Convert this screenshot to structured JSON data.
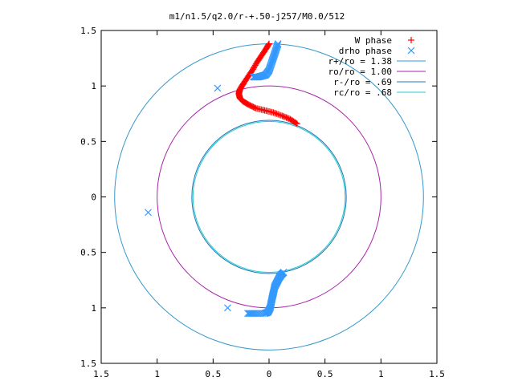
{
  "chart_data": {
    "type": "scatter",
    "title": "m1/n1.5/q2.0/r-+.50-j257/M0.0/512",
    "xlabel": "",
    "ylabel": "",
    "xlim": [
      -1.5,
      1.5
    ],
    "ylim": [
      -1.5,
      1.5
    ],
    "x_tick_values": [
      -1.5,
      -1,
      -0.5,
      0,
      0.5,
      1,
      1.5
    ],
    "x_tick_labels": [
      "1.5",
      "1",
      "0.5",
      "0",
      "0.5",
      "1",
      "1.5"
    ],
    "y_tick_values": [
      1.5,
      1,
      0.5,
      0,
      -0.5,
      -1,
      -1.5
    ],
    "y_tick_labels": [
      "1.5",
      "1",
      "0.5",
      "0",
      "0.5",
      "1",
      "1.5"
    ],
    "grid": false,
    "legend_position": "top-right",
    "series": [
      {
        "name": "W phase",
        "kind": "points",
        "marker": "+",
        "color": "#ff0000",
        "points": [
          [
            0.0,
            1.38
          ],
          [
            -0.03,
            1.33
          ],
          [
            -0.07,
            1.27
          ],
          [
            -0.11,
            1.21
          ],
          [
            -0.15,
            1.14
          ],
          [
            -0.19,
            1.08
          ],
          [
            -0.23,
            1.02
          ],
          [
            -0.26,
            0.97
          ],
          [
            -0.27,
            0.93
          ],
          [
            -0.26,
            0.89
          ],
          [
            -0.23,
            0.86
          ],
          [
            -0.18,
            0.83
          ],
          [
            -0.12,
            0.8
          ],
          [
            -0.04,
            0.78
          ],
          [
            0.04,
            0.76
          ],
          [
            0.12,
            0.73
          ],
          [
            0.19,
            0.7
          ],
          [
            0.25,
            0.66
          ]
        ]
      },
      {
        "name": "drho phase",
        "kind": "points",
        "marker": "x",
        "color": "#3399ff",
        "points": [
          [
            0.08,
            1.38
          ],
          [
            0.06,
            1.32
          ],
          [
            0.04,
            1.26
          ],
          [
            0.02,
            1.2
          ],
          [
            0.0,
            1.14
          ],
          [
            -0.03,
            1.1
          ],
          [
            -0.06,
            1.09
          ],
          [
            -0.1,
            1.08
          ],
          [
            -0.14,
            1.08
          ],
          [
            -0.46,
            0.98
          ],
          [
            -1.08,
            -0.14
          ],
          [
            -0.37,
            -1.0
          ],
          [
            -0.19,
            -1.05
          ],
          [
            -0.13,
            -1.05
          ],
          [
            -0.04,
            -1.05
          ],
          [
            -0.01,
            -1.04
          ],
          [
            0.01,
            -1.0
          ],
          [
            0.02,
            -0.95
          ],
          [
            0.03,
            -0.9
          ],
          [
            0.04,
            -0.86
          ],
          [
            0.05,
            -0.81
          ],
          [
            0.07,
            -0.77
          ],
          [
            0.09,
            -0.73
          ],
          [
            0.11,
            -0.7
          ],
          [
            0.13,
            -0.68
          ]
        ]
      },
      {
        "name": "r+/ro = 1.38",
        "kind": "circle",
        "radius": 1.38,
        "color": "#3399cc"
      },
      {
        "name": "ro/ro = 1.00",
        "kind": "circle",
        "radius": 1.0,
        "color": "#aa22aa"
      },
      {
        "name": "r-/ro = .69",
        "kind": "circle",
        "radius": 0.69,
        "color": "#2277bb"
      },
      {
        "name": "rc/ro = .68",
        "kind": "circle",
        "radius": 0.68,
        "color": "#22cccc"
      }
    ]
  }
}
